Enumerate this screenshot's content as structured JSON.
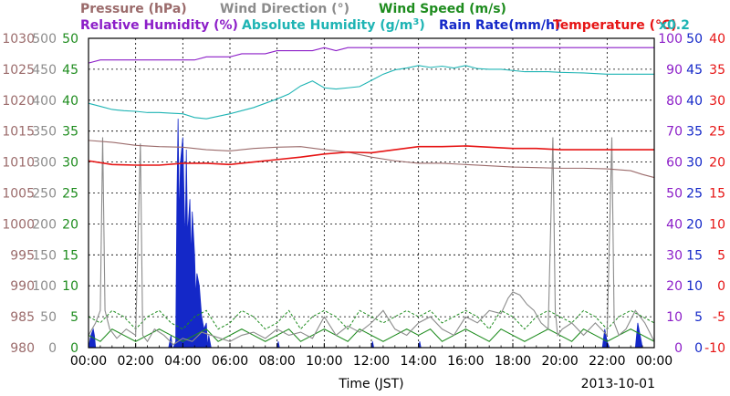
{
  "chart_data": {
    "type": "line",
    "title_rows": [
      [
        {
          "text": "Pressure (hPa)",
          "color": "#9b6b6b"
        },
        {
          "text": "Wind Direction (°)",
          "color": "#8c8c8c"
        },
        {
          "text": "Wind Speed (m/s)",
          "color": "#1e8c1e"
        }
      ],
      [
        {
          "text": "Relative Humidity (%)",
          "color": "#8c1ec8"
        },
        {
          "text": "Absolute Humidity (g/m",
          "sup": "3",
          "tail": ")",
          "color": "#1eb4b4"
        },
        {
          "text": "Rain Rate(mm/h)",
          "color": "#1428c8"
        },
        {
          "text": "Temperature (°C)",
          "color": "#e61414"
        }
      ]
    ],
    "multiplier_label": "x0.2",
    "xlabel": "Time (JST)",
    "date_label": "2013-10-01",
    "x_ticks": [
      "00:00",
      "02:00",
      "04:00",
      "06:00",
      "08:00",
      "10:00",
      "12:00",
      "14:00",
      "16:00",
      "18:00",
      "20:00",
      "22:00",
      "00:00"
    ],
    "xlim_hours": [
      0,
      24
    ],
    "left_axes": [
      {
        "name": "Pressure",
        "color": "#9b6b6b",
        "ticks": [
          1030,
          1025,
          1020,
          1015,
          1010,
          1005,
          1000,
          995,
          990,
          985,
          980
        ]
      },
      {
        "name": "Wind Direction",
        "color": "#8c8c8c",
        "ticks": [
          500,
          450,
          400,
          350,
          300,
          250,
          200,
          150,
          100,
          50,
          0
        ]
      },
      {
        "name": "Wind Speed",
        "color": "#1e8c1e",
        "ticks": [
          50,
          45,
          40,
          35,
          30,
          25,
          20,
          15,
          10,
          5,
          0
        ]
      }
    ],
    "right_axes": [
      {
        "name": "Relative Humidity",
        "color": "#8c1ec8",
        "ticks": [
          100,
          90,
          80,
          70,
          60,
          50,
          40,
          30,
          20,
          10,
          0
        ]
      },
      {
        "name": "Rain Rate",
        "color": "#1428c8",
        "ticks": [
          50,
          45,
          40,
          35,
          30,
          25,
          20,
          15,
          10,
          5,
          0
        ]
      },
      {
        "name": "Temperature",
        "color": "#e61414",
        "ticks": [
          40,
          35,
          30,
          25,
          20,
          15,
          10,
          5,
          0,
          -5,
          -10
        ]
      }
    ],
    "series": [
      {
        "name": "Relative Humidity",
        "color": "#8c1ec8",
        "ymin": 0,
        "ymax": 100,
        "x": [
          0,
          0.5,
          1.0,
          1.5,
          2.0,
          2.5,
          3.0,
          3.5,
          4.0,
          4.5,
          5.0,
          5.5,
          6.0,
          6.5,
          7.0,
          7.5,
          8.0,
          8.5,
          9.0,
          9.5,
          10.0,
          10.5,
          11.0,
          11.5,
          12.0,
          13.0,
          14.0,
          15.0,
          16.0,
          17.0,
          18.0,
          19.0,
          20.0,
          21.0,
          22.0,
          23.0,
          24.0
        ],
        "values": [
          92,
          93,
          93,
          93,
          93,
          93,
          93,
          93,
          93,
          93,
          94,
          94,
          94,
          95,
          95,
          95,
          96,
          96,
          96,
          96,
          97,
          96,
          97,
          97,
          97,
          97,
          97,
          97,
          97,
          97,
          97,
          97,
          97,
          97,
          97,
          97,
          97
        ]
      },
      {
        "name": "Absolute Humidity (x0.2)",
        "color": "#1eb4b4",
        "ymin": 0,
        "ymax": 50,
        "x": [
          0,
          0.5,
          1.0,
          1.5,
          2.0,
          2.5,
          3.0,
          3.5,
          4.0,
          4.5,
          5.0,
          5.5,
          6.0,
          6.5,
          7.0,
          7.5,
          8.0,
          8.5,
          9.0,
          9.5,
          10.0,
          10.5,
          11.0,
          11.5,
          12.0,
          12.5,
          13.0,
          13.5,
          14.0,
          14.5,
          15.0,
          15.5,
          16.0,
          16.5,
          17.0,
          17.5,
          18.0,
          18.5,
          19.0,
          19.5,
          20.0,
          21.0,
          22.0,
          23.0,
          24.0
        ],
        "values": [
          39.5,
          39,
          38.5,
          38.3,
          38.2,
          38.0,
          38.0,
          37.9,
          37.8,
          37.2,
          37.0,
          37.4,
          37.8,
          38.3,
          38.8,
          39.5,
          40.2,
          41.0,
          42.3,
          43.1,
          42.0,
          41.8,
          42.0,
          42.2,
          43.2,
          44.2,
          44.9,
          45.2,
          45.6,
          45.3,
          45.5,
          45.2,
          45.6,
          45.1,
          45.0,
          45.0,
          44.8,
          44.6,
          44.6,
          44.6,
          44.5,
          44.4,
          44.2,
          44.2,
          44.2
        ]
      },
      {
        "name": "Pressure",
        "color": "#9b6b6b",
        "ymin": 980,
        "ymax": 1030,
        "x": [
          0,
          1,
          2,
          3,
          4,
          5,
          6,
          7,
          8,
          9,
          10,
          11,
          12,
          13,
          14,
          15,
          16,
          17,
          18,
          19,
          20,
          21,
          22,
          23,
          23.5,
          24
        ],
        "values": [
          1013.5,
          1013.2,
          1012.7,
          1012.5,
          1012.4,
          1012.0,
          1011.8,
          1012.2,
          1012.4,
          1012.5,
          1012.0,
          1011.6,
          1010.8,
          1010.2,
          1009.8,
          1009.8,
          1009.6,
          1009.4,
          1009.2,
          1009.1,
          1009.0,
          1009.0,
          1008.9,
          1008.6,
          1008.0,
          1007.5
        ]
      },
      {
        "name": "Temperature",
        "color": "#e61414",
        "ymin": -10,
        "ymax": 40,
        "x": [
          0,
          1,
          2,
          3,
          4,
          5,
          6,
          7,
          8,
          9,
          10,
          11,
          12,
          13,
          14,
          15,
          16,
          17,
          18,
          19,
          20,
          21,
          22,
          23,
          24
        ],
        "values": [
          20.2,
          19.6,
          19.5,
          19.5,
          19.8,
          19.8,
          19.6,
          20.0,
          20.4,
          20.8,
          21.3,
          21.6,
          21.5,
          22.0,
          22.5,
          22.5,
          22.6,
          22.4,
          22.2,
          22.2,
          22.0,
          22.0,
          22.0,
          22.0,
          22.0
        ]
      },
      {
        "name": "Wind Direction",
        "color": "#8c8c8c",
        "ymin": 0,
        "ymax": 500,
        "x": [
          0,
          0.3,
          0.5,
          0.6,
          0.7,
          0.9,
          1.2,
          1.6,
          2.0,
          2.2,
          2.3,
          2.5,
          2.8,
          3.2,
          3.6,
          4.0,
          4.4,
          4.8,
          5.2,
          5.6,
          6.0,
          6.5,
          7.0,
          7.5,
          8.0,
          8.5,
          9.0,
          9.5,
          10.0,
          10.5,
          11.0,
          11.5,
          12.0,
          12.5,
          13.0,
          13.5,
          14.0,
          14.5,
          15.0,
          15.5,
          16.0,
          16.5,
          17.0,
          17.5,
          17.8,
          18.0,
          18.3,
          18.6,
          18.9,
          19.2,
          19.5,
          19.7,
          19.8,
          19.9,
          20.1,
          20.5,
          21.0,
          21.5,
          22.0,
          22.2,
          22.3,
          22.5,
          22.8,
          23.2,
          23.6,
          24.0
        ],
        "values": [
          20,
          40,
          60,
          340,
          60,
          30,
          15,
          30,
          20,
          330,
          20,
          10,
          30,
          20,
          5,
          15,
          10,
          25,
          20,
          15,
          10,
          20,
          25,
          15,
          30,
          20,
          25,
          15,
          50,
          20,
          35,
          25,
          40,
          60,
          30,
          20,
          40,
          50,
          30,
          20,
          50,
          40,
          60,
          55,
          80,
          90,
          85,
          70,
          60,
          40,
          30,
          340,
          60,
          20,
          30,
          40,
          20,
          40,
          20,
          340,
          40,
          20,
          30,
          60,
          40,
          10
        ]
      },
      {
        "name": "Wind Speed",
        "color": "#1e8c1e",
        "ymin": 0,
        "ymax": 50,
        "x": [
          0,
          0.5,
          1,
          1.5,
          2,
          2.5,
          3,
          3.5,
          4,
          4.5,
          5,
          5.5,
          6,
          6.5,
          7,
          7.5,
          8,
          8.5,
          9,
          9.5,
          10,
          10.5,
          11,
          11.5,
          12,
          12.5,
          13,
          13.5,
          14,
          14.5,
          15,
          15.5,
          16,
          16.5,
          17,
          17.5,
          18,
          18.5,
          19,
          19.5,
          20,
          20.5,
          21,
          21.5,
          22,
          22.5,
          23,
          23.5,
          24
        ],
        "values": [
          2,
          1,
          3,
          2,
          1,
          2,
          3,
          2,
          1,
          2,
          3,
          1,
          2,
          3,
          2,
          1,
          2,
          3,
          1,
          2,
          3,
          2,
          1,
          3,
          2,
          1,
          2,
          3,
          2,
          3,
          1,
          2,
          3,
          2,
          1,
          3,
          2,
          1,
          2,
          3,
          2,
          1,
          3,
          2,
          1,
          2,
          3,
          2,
          1
        ],
        "max_values": [
          5,
          4,
          6,
          5,
          3,
          5,
          6,
          4,
          3,
          5,
          6,
          3,
          4,
          6,
          5,
          3,
          4,
          6,
          3,
          5,
          6,
          5,
          3,
          6,
          5,
          4,
          5,
          6,
          5,
          6,
          4,
          5,
          6,
          5,
          3,
          6,
          5,
          3,
          5,
          6,
          5,
          4,
          6,
          5,
          3,
          5,
          6,
          5,
          4
        ]
      },
      {
        "name": "Rain Rate",
        "color": "#1428c8",
        "ymin": 0,
        "ymax": 50,
        "kind": "area",
        "x": [
          0,
          0.1,
          0.2,
          0.25,
          0.3,
          3.4,
          3.5,
          3.55,
          3.6,
          3.7,
          3.75,
          3.8,
          3.85,
          3.9,
          4.0,
          4.1,
          4.15,
          4.2,
          4.3,
          4.35,
          4.4,
          4.5,
          4.55,
          4.6,
          4.7,
          4.8,
          4.9,
          5.0,
          5.05,
          5.1,
          5.2,
          8.0,
          8.05,
          8.1,
          12.0,
          12.05,
          12.1,
          14.0,
          14.05,
          14.1,
          21.8,
          21.9,
          22.0,
          22.1,
          23.2,
          23.3,
          23.4,
          23.5,
          24.0
        ],
        "values": [
          0,
          2,
          3,
          2,
          0,
          0,
          2,
          0,
          0,
          1,
          24,
          37,
          20,
          30,
          34,
          16,
          32,
          18,
          24,
          14,
          22,
          15,
          8,
          12,
          10,
          5,
          3,
          4,
          0,
          2,
          0,
          0,
          1,
          0,
          0,
          1,
          0,
          0,
          1,
          0,
          0,
          3,
          1,
          0,
          0,
          4,
          2,
          0,
          0
        ]
      }
    ]
  }
}
